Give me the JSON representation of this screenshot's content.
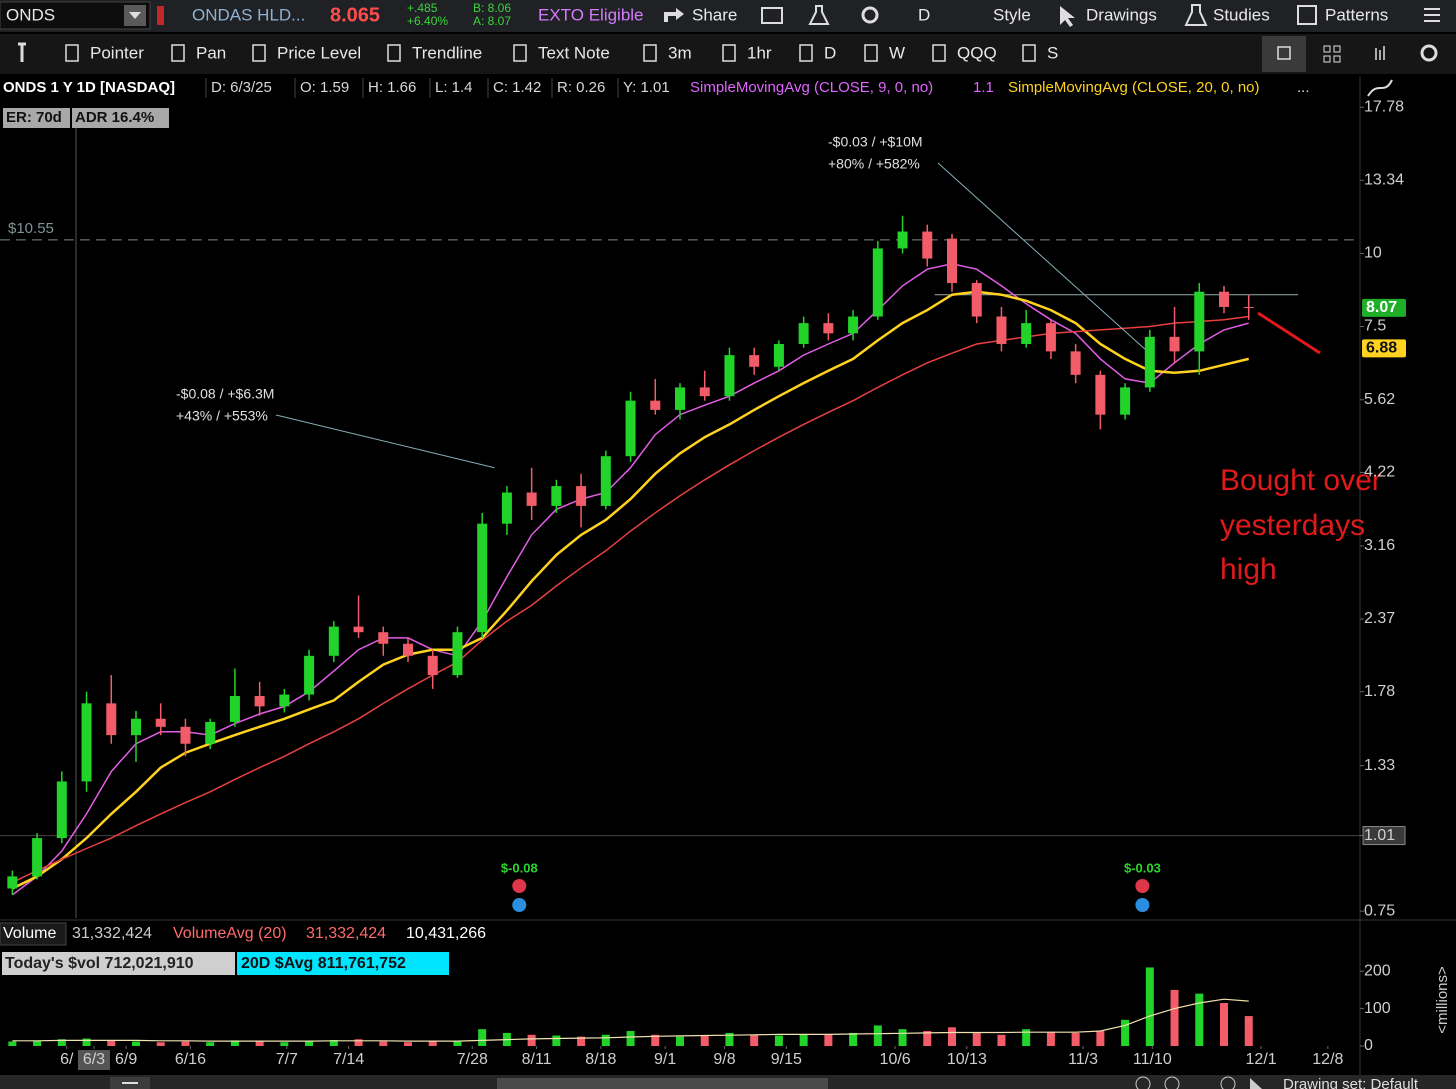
{
  "toolbar": {
    "symbol": "ONDS",
    "company": "ONDAS HLD...",
    "last": "8.065",
    "change": "+.485",
    "change_pct": "+6.40%",
    "bid": "B: 8.06",
    "ask": "A: 8.07",
    "exto": "EXTO Eligible",
    "share": "Share",
    "aggregation": "D",
    "style": "Style",
    "drawings": "Drawings",
    "studies": "Studies",
    "patterns": "Patterns"
  },
  "tools": [
    "Pointer",
    "Pan",
    "Price Level",
    "Trendline",
    "Text Note",
    "3m",
    "1hr",
    "D",
    "W",
    "QQQ",
    "S"
  ],
  "header": {
    "title": "ONDS 1 Y 1D [NASDAQ]",
    "fields": [
      "D: 6/3/25",
      "O: 1.59",
      "H: 1.66",
      "L: 1.4",
      "C: 1.42",
      "R: 0.26",
      "Y: 1.01"
    ],
    "study1_value": "1.1",
    "more": "...",
    "badges": [
      "ER: 70d",
      "ADR 16.4%"
    ]
  },
  "note": {
    "lines": [
      "Bought over",
      "yesterdays",
      "high"
    ]
  },
  "volume_header": {
    "volume_value": "31,332,424",
    "avg_value": "31,332,424",
    "other_value": "10,431,266",
    "todays": "Today's $vol 712,021,910",
    "avg20": "20D $Avg 811,761,752"
  },
  "footer": "Drawing set: Default",
  "chart_data": [
    {
      "type": "candlestick",
      "log_scale": true,
      "categories": [
        null,
        null,
        null,
        null,
        null,
        null,
        null,
        null,
        null,
        null,
        null,
        null,
        null,
        null,
        null,
        null,
        null,
        null,
        null,
        null,
        null,
        null,
        null,
        null,
        null,
        null,
        null,
        null,
        null,
        null,
        null,
        null,
        null,
        null,
        null,
        null,
        null,
        null,
        null,
        null,
        null,
        null,
        null,
        null,
        null,
        null,
        null,
        null,
        null,
        null,
        null
      ],
      "open": [
        0.82,
        0.86,
        1.0,
        1.25,
        1.7,
        1.5,
        1.6,
        1.55,
        1.45,
        1.58,
        1.75,
        1.68,
        1.76,
        2.05,
        2.3,
        2.25,
        2.15,
        2.05,
        1.9,
        2.25,
        3.45,
        3.9,
        3.7,
        4.0,
        3.7,
        4.5,
        5.6,
        5.4,
        5.9,
        5.7,
        6.7,
        6.4,
        7.0,
        7.6,
        7.3,
        7.8,
        10.2,
        10.9,
        10.6,
        8.9,
        7.8,
        7.0,
        7.6,
        6.8,
        6.2,
        5.3,
        5.9,
        7.2,
        6.8,
        8.6,
        8.1
      ],
      "high": [
        0.88,
        1.02,
        1.3,
        1.78,
        1.9,
        1.65,
        1.7,
        1.6,
        1.6,
        1.95,
        1.85,
        1.8,
        2.1,
        2.35,
        2.6,
        2.3,
        2.2,
        2.1,
        2.3,
        3.6,
        4.0,
        4.3,
        4.1,
        4.2,
        4.6,
        5.8,
        6.1,
        6.0,
        6.3,
        6.9,
        6.9,
        7.1,
        7.8,
        7.9,
        8.0,
        10.5,
        11.6,
        11.2,
        10.8,
        9.0,
        8.1,
        8.0,
        7.7,
        7.0,
        6.3,
        6.0,
        7.4,
        8.1,
        8.9,
        8.8,
        8.5
      ],
      "low": [
        0.8,
        0.85,
        0.98,
        1.2,
        1.45,
        1.35,
        1.5,
        1.38,
        1.42,
        1.55,
        1.62,
        1.64,
        1.72,
        2.0,
        2.2,
        2.05,
        2.0,
        1.8,
        1.88,
        2.2,
        3.3,
        3.5,
        3.6,
        3.4,
        3.65,
        4.4,
        5.3,
        5.2,
        5.6,
        5.6,
        6.2,
        6.3,
        6.9,
        7.1,
        7.1,
        7.7,
        10.0,
        9.5,
        8.6,
        7.6,
        6.8,
        6.9,
        6.6,
        6.0,
        5.0,
        5.2,
        5.8,
        6.5,
        6.2,
        7.9,
        7.7
      ],
      "close": [
        0.86,
        1.0,
        1.25,
        1.7,
        1.5,
        1.6,
        1.55,
        1.45,
        1.58,
        1.75,
        1.68,
        1.76,
        2.05,
        2.3,
        2.25,
        2.15,
        2.05,
        1.9,
        2.25,
        3.45,
        3.9,
        3.7,
        4.0,
        3.7,
        4.5,
        5.6,
        5.4,
        5.9,
        5.7,
        6.7,
        6.4,
        7.0,
        7.6,
        7.3,
        7.8,
        10.2,
        10.9,
        9.8,
        8.9,
        7.8,
        7.0,
        7.6,
        6.8,
        6.2,
        5.3,
        5.9,
        7.2,
        6.8,
        8.6,
        8.1,
        8.07
      ],
      "up_color": "#22d42a",
      "down_color": "#f25c68",
      "series": [
        {
          "name": "SimpleMovingAvg (CLOSE, 9, 0, no)",
          "color": "#e35ee6",
          "values": [
            0.8,
            0.86,
            0.95,
            1.1,
            1.3,
            1.45,
            1.52,
            1.52,
            1.5,
            1.57,
            1.63,
            1.68,
            1.78,
            1.93,
            2.1,
            2.2,
            2.2,
            2.1,
            2.05,
            2.35,
            2.8,
            3.3,
            3.65,
            3.8,
            3.9,
            4.3,
            4.9,
            5.3,
            5.5,
            5.7,
            6.0,
            6.3,
            6.7,
            7.0,
            7.3,
            8.0,
            8.8,
            9.4,
            9.6,
            9.4,
            8.8,
            8.2,
            7.7,
            7.3,
            6.6,
            6.1,
            6.0,
            6.5,
            7.0,
            7.4,
            7.6
          ]
        },
        {
          "name": "SimpleMovingAvg (CLOSE, 20, 0, no)",
          "color": "#ffd21f",
          "values": [
            0.82,
            0.86,
            0.92,
            1.0,
            1.1,
            1.2,
            1.32,
            1.4,
            1.45,
            1.5,
            1.55,
            1.6,
            1.66,
            1.72,
            1.85,
            1.98,
            2.06,
            2.1,
            2.1,
            2.2,
            2.45,
            2.75,
            3.05,
            3.3,
            3.5,
            3.8,
            4.2,
            4.55,
            4.85,
            5.1,
            5.4,
            5.7,
            6.0,
            6.3,
            6.6,
            7.1,
            7.6,
            8.0,
            8.5,
            8.6,
            8.5,
            8.3,
            8.0,
            7.6,
            7.0,
            6.6,
            6.3,
            6.25,
            6.3,
            6.45,
            6.6
          ]
        },
        {
          "color": "#e8403f",
          "values": [
            0.84,
            0.88,
            0.92,
            0.96,
            1.0,
            1.05,
            1.1,
            1.15,
            1.2,
            1.26,
            1.32,
            1.38,
            1.45,
            1.52,
            1.6,
            1.7,
            1.8,
            1.9,
            2.0,
            2.18,
            2.35,
            2.5,
            2.7,
            2.9,
            3.1,
            3.35,
            3.6,
            3.85,
            4.1,
            4.35,
            4.6,
            4.85,
            5.1,
            5.35,
            5.6,
            5.9,
            6.2,
            6.5,
            6.75,
            7.0,
            7.1,
            7.2,
            7.3,
            7.35,
            7.4,
            7.45,
            7.5,
            7.6,
            7.65,
            7.7,
            7.8
          ]
        }
      ],
      "xlim": [
        -0.5,
        54.5
      ],
      "xticks": [
        {
          "value": 2.2,
          "label": "6/"
        },
        {
          "value": 3.3,
          "label": "6/3"
        },
        {
          "value": 4.6,
          "label": "6/9"
        },
        {
          "value": 7.2,
          "label": "6/16"
        },
        {
          "value": 11.1,
          "label": "7/7"
        },
        {
          "value": 13.6,
          "label": "7/14"
        },
        {
          "value": 18.6,
          "label": "7/28"
        },
        {
          "value": 21.2,
          "label": "8/11"
        },
        {
          "value": 23.8,
          "label": "8/18"
        },
        {
          "value": 26.4,
          "label": "9/1"
        },
        {
          "value": 28.8,
          "label": "9/8"
        },
        {
          "value": 31.3,
          "label": "9/15"
        },
        {
          "value": 35.7,
          "label": "10/6"
        },
        {
          "value": 38.6,
          "label": "10/13"
        },
        {
          "value": 43.3,
          "label": "11/3"
        },
        {
          "value": 46.1,
          "label": "11/10"
        },
        {
          "value": 50.5,
          "label": "12/1"
        },
        {
          "value": 53.2,
          "label": "12/8"
        }
      ],
      "ylim": [
        0.73,
        18.3
      ],
      "yticks": [
        17.78,
        13.34,
        10,
        7.5,
        5.62,
        4.22,
        3.16,
        2.37,
        1.78,
        1.33,
        1.01,
        0.75
      ],
      "levels": [
        {
          "value": 10.55,
          "label": "$10.55"
        },
        {
          "value": 1.01
        }
      ],
      "price_level": {
        "value": 8.5,
        "from": 37.3,
        "to": 52
      },
      "price_markers": [
        {
          "value": 8.07,
          "color": "#1fae28"
        },
        {
          "value": 6.88,
          "color": "#ffd21f"
        }
      ],
      "annotations": [
        {
          "lines": [
            "-$0.08 / +$6.3M",
            "+43% / +553%"
          ],
          "x": 19.5,
          "y": 4.3
        },
        {
          "lines": [
            "-$0.03 / +$10M",
            "+80% / +582%"
          ],
          "x": 45.8,
          "y": 6.86
        }
      ],
      "earnings": [
        {
          "x": 20.5,
          "label": "$-0.08"
        },
        {
          "x": 45.7,
          "label": "$-0.03"
        }
      ]
    },
    {
      "type": "bar",
      "axis_label": "<millions>",
      "series": [
        {
          "name": "Volume",
          "values": [
            12,
            14,
            18,
            20,
            16,
            12,
            10,
            12,
            10,
            15,
            12,
            10,
            14,
            16,
            18,
            12,
            10,
            14,
            12,
            45,
            35,
            30,
            28,
            25,
            30,
            40,
            30,
            25,
            28,
            35,
            30,
            28,
            32,
            30,
            35,
            55,
            45,
            40,
            50,
            35,
            30,
            45,
            38,
            35,
            40,
            70,
            210,
            150,
            140,
            115,
            80
          ]
        },
        {
          "name": "VolumeAvg (20)",
          "color": "#f0e2b0",
          "values": [
            14,
            14,
            15,
            15,
            15,
            15,
            14,
            14,
            13,
            13,
            13,
            13,
            13,
            14,
            14,
            14,
            13,
            13,
            13,
            15,
            17,
            19,
            20,
            21,
            22,
            24,
            26,
            27,
            28,
            29,
            30,
            31,
            31,
            31,
            32,
            33,
            34,
            35,
            36,
            36,
            36,
            37,
            37,
            37,
            40,
            55,
            80,
            100,
            115,
            125,
            120
          ]
        }
      ],
      "ylim": [
        0,
        262
      ],
      "yticks": [
        0,
        100,
        200
      ]
    }
  ]
}
